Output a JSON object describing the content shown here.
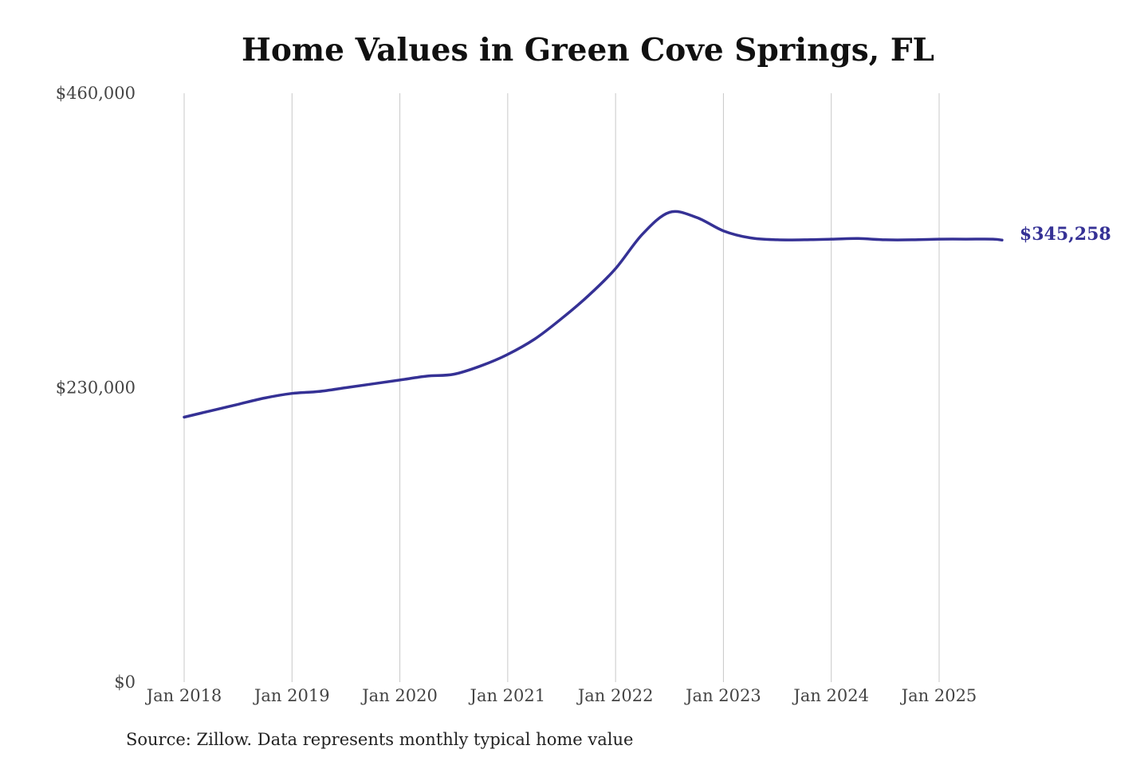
{
  "chart_data": {
    "type": "line",
    "title": "Home Values in Green Cove Springs, FL",
    "source": "Source: Zillow. Data represents monthly typical home value",
    "x_tick_labels": [
      "Jan 2018",
      "Jan 2019",
      "Jan 2020",
      "Jan 2021",
      "Jan 2022",
      "Jan 2023",
      "Jan 2024",
      "Jan 2025"
    ],
    "y_tick_labels": [
      "$0",
      "$230,000",
      "$460,000"
    ],
    "y_ticks": [
      0,
      230000,
      460000
    ],
    "ylim": [
      0,
      460000
    ],
    "x_range": [
      "2018-01",
      "2025-08"
    ],
    "grid": "vertical",
    "line_color": "#353195",
    "end_label": "$345,258",
    "series": [
      {
        "x": [
          "2018-01",
          "2018-04",
          "2018-07",
          "2018-10",
          "2019-01",
          "2019-04",
          "2019-07",
          "2019-10",
          "2020-01",
          "2020-04",
          "2020-07",
          "2020-10",
          "2021-01",
          "2021-04",
          "2021-07",
          "2021-10",
          "2022-01",
          "2022-04",
          "2022-07",
          "2022-10",
          "2023-01",
          "2023-04",
          "2023-07",
          "2023-10",
          "2024-01",
          "2024-04",
          "2024-07",
          "2024-10",
          "2025-01",
          "2025-04",
          "2025-07",
          "2025-08"
        ],
        "values": [
          207000,
          212000,
          217000,
          222000,
          225500,
          227000,
          230000,
          233000,
          236000,
          239000,
          240500,
          247000,
          256000,
          268000,
          284000,
          302000,
          323000,
          350000,
          367000,
          363000,
          352500,
          347000,
          345500,
          345500,
          346000,
          346500,
          345500,
          345500,
          346000,
          346000,
          346000,
          345258
        ]
      }
    ]
  }
}
